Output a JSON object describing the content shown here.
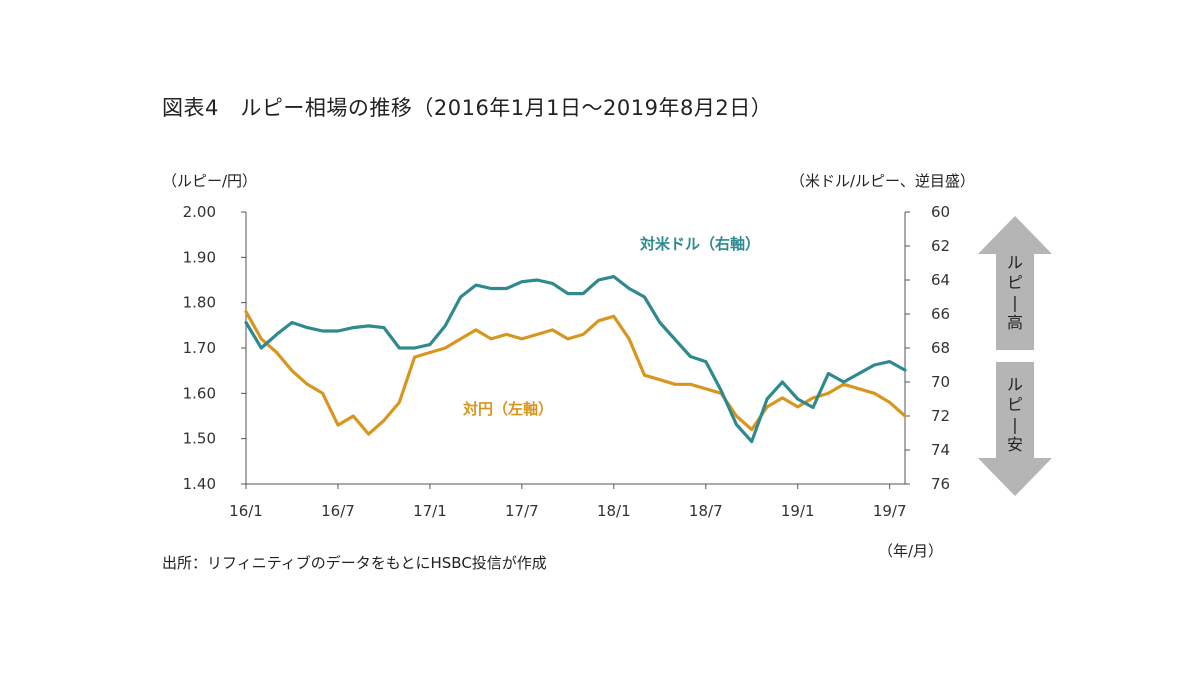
{
  "figure": {
    "title": "図表4　ルピー相場の推移（2016年1月1日～2019年8月2日）",
    "left_axis_unit": "（ルピー/円）",
    "right_axis_unit": "（米ドル/ルピー、逆目盛）",
    "x_axis_unit": "（年/月）",
    "source": "出所：リフィニティブのデータをもとにHSBC投信が作成",
    "arrow_up_label": "ルピー高",
    "arrow_down_label": "ルピー安"
  },
  "chart_data": {
    "type": "line",
    "title": "ルピー相場の推移（2016年1月1日～2019年8月2日）",
    "x_ticks": [
      "16/1",
      "16/7",
      "17/1",
      "17/7",
      "18/1",
      "18/7",
      "19/1",
      "19/7"
    ],
    "y_left": {
      "label": "（ルピー/円）",
      "range": [
        1.4,
        2.0
      ],
      "ticks": [
        "2.00",
        "1.90",
        "1.80",
        "1.70",
        "1.60",
        "1.50",
        "1.40"
      ]
    },
    "y_right": {
      "label": "（米ドル/ルピー、逆目盛）",
      "range": [
        60,
        76
      ],
      "inverted": true,
      "ticks": [
        "60",
        "62",
        "64",
        "66",
        "68",
        "70",
        "72",
        "74",
        "76"
      ]
    },
    "x": [
      "2016-01",
      "2016-02",
      "2016-03",
      "2016-04",
      "2016-05",
      "2016-06",
      "2016-07",
      "2016-08",
      "2016-09",
      "2016-10",
      "2016-11",
      "2016-12",
      "2017-01",
      "2017-02",
      "2017-03",
      "2017-04",
      "2017-05",
      "2017-06",
      "2017-07",
      "2017-08",
      "2017-09",
      "2017-10",
      "2017-11",
      "2017-12",
      "2018-01",
      "2018-02",
      "2018-03",
      "2018-04",
      "2018-05",
      "2018-06",
      "2018-07",
      "2018-08",
      "2018-09",
      "2018-10",
      "2018-11",
      "2018-12",
      "2019-01",
      "2019-02",
      "2019-03",
      "2019-04",
      "2019-05",
      "2019-06",
      "2019-07",
      "2019-08"
    ],
    "series": [
      {
        "name": "対円（左軸）",
        "axis": "left",
        "color": "#d9961e",
        "values": [
          1.78,
          1.72,
          1.69,
          1.65,
          1.62,
          1.6,
          1.53,
          1.55,
          1.51,
          1.54,
          1.58,
          1.68,
          1.69,
          1.7,
          1.72,
          1.74,
          1.72,
          1.73,
          1.72,
          1.73,
          1.74,
          1.72,
          1.73,
          1.76,
          1.77,
          1.72,
          1.64,
          1.63,
          1.62,
          1.62,
          1.61,
          1.6,
          1.55,
          1.52,
          1.57,
          1.59,
          1.57,
          1.59,
          1.6,
          1.62,
          1.61,
          1.6,
          1.58,
          1.55
        ]
      },
      {
        "name": "対米ドル（右軸）",
        "axis": "right",
        "color": "#2e8a8f",
        "values": [
          66.5,
          68.0,
          67.2,
          66.5,
          66.8,
          67.0,
          67.0,
          66.8,
          66.7,
          66.8,
          68.0,
          68.0,
          67.8,
          66.7,
          65.0,
          64.3,
          64.5,
          64.5,
          64.1,
          64.0,
          64.2,
          64.8,
          64.8,
          64.0,
          63.8,
          64.5,
          65.0,
          66.5,
          67.5,
          68.5,
          68.8,
          70.5,
          72.5,
          73.5,
          71.0,
          70.0,
          71.0,
          71.5,
          69.5,
          70.0,
          69.5,
          69.0,
          68.8,
          69.3
        ]
      }
    ],
    "annotations": [
      {
        "text": "対米ドル（右軸）",
        "series": "対米ドル（右軸）"
      },
      {
        "text": "対円（左軸）",
        "series": "対円（左軸）"
      }
    ],
    "grid": false,
    "legend": "inline labels"
  }
}
